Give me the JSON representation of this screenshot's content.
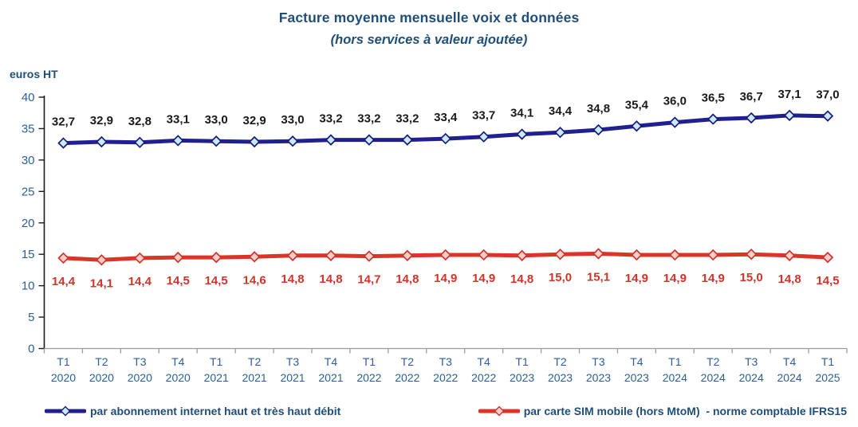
{
  "header": {
    "title": "Facture moyenne mensuelle voix et données",
    "subtitle": "(hors services à valeur ajoutée)"
  },
  "chart_data": {
    "type": "line",
    "title": "Facture moyenne mensuelle voix et données",
    "subtitle": "(hors services à valeur ajoutée)",
    "ylabel": "euros HT",
    "xlabel": "",
    "ylim": [
      0,
      40
    ],
    "y_ticks": [
      0,
      5,
      10,
      15,
      20,
      25,
      30,
      35,
      40
    ],
    "grid": false,
    "legend_position": "bottom",
    "decimal_separator": ",",
    "categories": [
      "T1 2020",
      "T2 2020",
      "T3 2020",
      "T4 2020",
      "T1 2021",
      "T2 2021",
      "T3 2021",
      "T4 2021",
      "T1 2022",
      "T2 2022",
      "T3 2022",
      "T4 2022",
      "T1 2023",
      "T2 2023",
      "T3 2023",
      "T4 2023",
      "T1 2024",
      "T2 2024",
      "T3 2024",
      "T4 2024",
      "T1 2025"
    ],
    "series": [
      {
        "name": "par abonnement internet haut et très haut débit",
        "color": "#20218E",
        "marker_fill": "#CBEAF9",
        "marker_stroke": "#181A7E",
        "label_color": "#1A1A1A",
        "values": [
          32.7,
          32.9,
          32.8,
          33.1,
          33.0,
          32.9,
          33.0,
          33.2,
          33.2,
          33.2,
          33.4,
          33.7,
          34.1,
          34.4,
          34.8,
          35.4,
          36.0,
          36.5,
          36.7,
          37.1,
          37.0
        ]
      },
      {
        "name": "par carte SIM mobile (hors MtoM)  - norme comptable IFRS15",
        "color": "#DB3429",
        "marker_fill": "#F6CFCA",
        "marker_stroke": "#D43227",
        "label_color": "#D23428",
        "values": [
          14.4,
          14.1,
          14.4,
          14.5,
          14.5,
          14.6,
          14.8,
          14.8,
          14.7,
          14.8,
          14.9,
          14.9,
          14.8,
          15.0,
          15.1,
          14.9,
          14.9,
          14.9,
          15.0,
          14.8,
          14.5
        ]
      }
    ]
  },
  "colors": {
    "title": "#1F4E79",
    "tick_label": "#2D5F94",
    "y_axis_line": "#1A1A1A",
    "x_axis_line": "#9C9C9C"
  }
}
